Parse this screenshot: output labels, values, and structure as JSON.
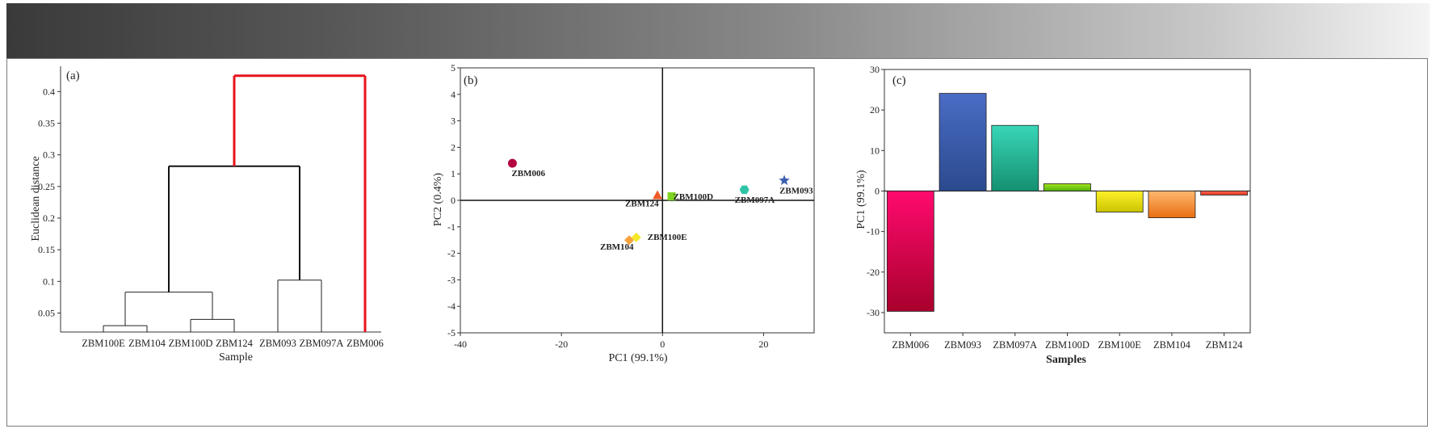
{
  "chart_data": [
    {
      "type": "dendrogram",
      "panel_label": "(a)",
      "xlabel": "Sample",
      "ylabel": "Euclidean distance",
      "yticks": [
        "0.05",
        "0.1",
        "0.15",
        "0.2",
        "0.25",
        "0.3",
        "0.35",
        "0.4"
      ],
      "ylim": [
        0.02,
        0.44
      ],
      "leaves": [
        "ZBM100E",
        "ZBM104",
        "ZBM100D",
        "ZBM124",
        "ZBM093",
        "ZBM097A",
        "ZBM006"
      ],
      "merges": [
        {
          "left": "ZBM100E",
          "right": "ZBM104",
          "height": 0.03
        },
        {
          "left": "ZBM100D",
          "right": "ZBM124",
          "height": 0.04
        },
        {
          "left": "ZBM100E+ZBM104",
          "right": "ZBM100D+ZBM124",
          "height": 0.083
        },
        {
          "left": "ZBM093",
          "right": "ZBM097A",
          "height": 0.102
        },
        {
          "left": "group1",
          "right": "ZBM093+ZBM097A",
          "height": 0.282
        },
        {
          "left": "group2",
          "right": "ZBM006",
          "height": 0.425
        }
      ],
      "highlight_color": "#e8141b"
    },
    {
      "type": "scatter",
      "panel_label": "(b)",
      "xlabel": "PC1 (99.1%)",
      "ylabel": "PC2 (0.4%)",
      "xlim": [
        -40,
        30
      ],
      "ylim": [
        -5,
        5
      ],
      "xticks": [
        "-40",
        "-20",
        "0",
        "20"
      ],
      "yticks": [
        "-5",
        "-4",
        "-3",
        "-2",
        "-1",
        "0",
        "1",
        "2",
        "3",
        "4",
        "5"
      ],
      "points": [
        {
          "label": "ZBM006",
          "x": -29.7,
          "y": 1.4,
          "color": "#b3063f",
          "shape": "sphere"
        },
        {
          "label": "ZBM124",
          "x": -1.0,
          "y": 0.2,
          "color": "#f05a28",
          "shape": "triangle"
        },
        {
          "label": "ZBM100D",
          "x": 1.8,
          "y": 0.15,
          "color": "#7ed321",
          "shape": "square"
        },
        {
          "label": "ZBM097A",
          "x": 16.2,
          "y": 0.4,
          "color": "#2ec4a5",
          "shape": "hexagon"
        },
        {
          "label": "ZBM093",
          "x": 24.1,
          "y": 0.75,
          "color": "#3d5fb0",
          "shape": "star"
        },
        {
          "label": "ZBM104",
          "x": -6.6,
          "y": -1.5,
          "color": "#f7a33c",
          "shape": "diamond"
        },
        {
          "label": "ZBM100E",
          "x": -5.2,
          "y": -1.4,
          "color": "#f5e92a",
          "shape": "diamond"
        }
      ]
    },
    {
      "type": "bar",
      "panel_label": "(c)",
      "xlabel": "Samples",
      "ylabel": "PC1 (99.1%)",
      "ylim": [
        -35,
        30
      ],
      "yticks": [
        "-30",
        "-20",
        "-10",
        "0",
        "10",
        "20",
        "30"
      ],
      "categories": [
        "ZBM006",
        "ZBM093",
        "ZBM097A",
        "ZBM100D",
        "ZBM100E",
        "ZBM104",
        "ZBM124"
      ],
      "values": [
        -29.7,
        24.1,
        16.2,
        1.8,
        -5.2,
        -6.6,
        -1.0
      ],
      "colors": [
        [
          "#ff0a6e",
          "#a8002c"
        ],
        [
          "#4a6cc4",
          "#2b4a8e"
        ],
        [
          "#39d6b8",
          "#14906f"
        ],
        [
          "#a6e61e",
          "#4fb00d"
        ],
        [
          "#fff02a",
          "#c9c400"
        ],
        [
          "#ffb870",
          "#e86e12"
        ],
        [
          "#ff6a50",
          "#e0321e"
        ]
      ]
    }
  ]
}
